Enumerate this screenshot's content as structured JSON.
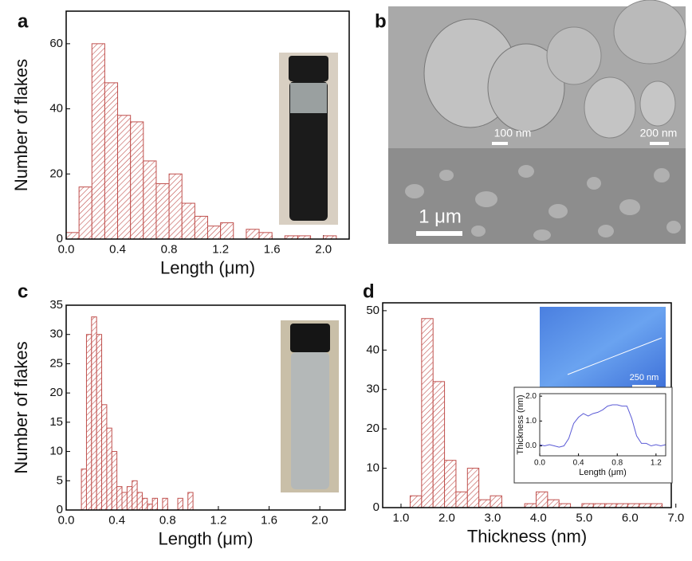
{
  "panel_labels": [
    "a",
    "b",
    "c",
    "d"
  ],
  "scale_bars": [
    "100 nm",
    "200 nm",
    "1 μm",
    "250 nm"
  ],
  "chart_data": [
    {
      "type": "histogram",
      "xlabel": "Length (μm)",
      "ylabel": "Number of flakes",
      "color": "#c0504d",
      "bins": [
        0.0,
        0.1,
        0.2,
        0.3,
        0.4,
        0.5,
        0.6,
        0.7,
        0.8,
        0.9,
        1.0,
        1.1,
        1.2,
        1.3,
        1.4,
        1.5,
        1.6,
        1.7,
        1.8,
        1.9,
        2.0,
        2.1,
        2.2
      ],
      "values": [
        2,
        16,
        60,
        48,
        38,
        36,
        24,
        17,
        20,
        11,
        7,
        4,
        5,
        0,
        3,
        2,
        0,
        1,
        1,
        0,
        1,
        0
      ],
      "xlim": [
        0,
        2.2
      ],
      "ylim": [
        0,
        70
      ],
      "xticks": [
        {
          "value": 0,
          "label": "0.0"
        },
        0.4,
        0.8,
        1.2,
        1.6,
        {
          "value": 2,
          "label": "2.0"
        }
      ],
      "yticks": [
        0,
        20,
        40,
        60
      ]
    },
    {
      "type": "histogram",
      "xlabel": "Length (μm)",
      "ylabel": "Number of flakes",
      "color": "#c0504d",
      "bins": [
        0.12,
        0.16,
        0.2,
        0.24,
        0.28,
        0.32,
        0.36,
        0.4,
        0.44,
        0.48,
        0.52,
        0.56,
        0.6,
        0.64,
        0.68,
        0.72,
        0.76,
        0.8,
        0.84,
        0.88,
        0.92,
        0.96,
        1.0,
        1.04
      ],
      "values": [
        7,
        30,
        33,
        30,
        18,
        14,
        10,
        4,
        3,
        4,
        5,
        3,
        2,
        1,
        2,
        0,
        2,
        0,
        0,
        2,
        0,
        3,
        0
      ],
      "xlim": [
        0,
        2.2
      ],
      "ylim": [
        0,
        35
      ],
      "xticks": [
        {
          "value": 0,
          "label": "0.0"
        },
        0.4,
        0.8,
        1.2,
        1.6,
        {
          "value": 2,
          "label": "2.0"
        }
      ],
      "yticks": [
        0,
        5,
        10,
        15,
        20,
        25,
        30,
        35
      ]
    },
    {
      "type": "histogram",
      "xlabel": "Thickness (nm)",
      "color": "#c0504d",
      "bins": [
        1.2,
        1.45,
        1.7,
        1.95,
        2.2,
        2.45,
        2.7,
        2.95,
        3.2,
        3.45,
        3.7,
        3.95,
        4.2,
        4.45,
        4.7,
        4.95,
        5.2,
        5.45,
        5.7,
        5.95,
        6.2,
        6.45,
        6.7
      ],
      "values": [
        3,
        48,
        32,
        12,
        4,
        10,
        2,
        3,
        0,
        0,
        1,
        4,
        2,
        1,
        0,
        1,
        1,
        1,
        1,
        1,
        1,
        1
      ],
      "xlim": [
        0.6,
        6.9
      ],
      "ylim": [
        0,
        52
      ],
      "xticks": [
        {
          "value": 1,
          "label": "1.0"
        },
        {
          "value": 2,
          "label": "2.0"
        },
        {
          "value": 3,
          "label": "3.0"
        },
        {
          "value": 4,
          "label": "4.0"
        },
        {
          "value": 5,
          "label": "5.0"
        },
        {
          "value": 6,
          "label": "6.0"
        },
        {
          "value": 7,
          "label": "7.0"
        }
      ],
      "yticks": [
        0,
        10,
        20,
        30,
        40,
        50
      ]
    },
    {
      "type": "line",
      "xlabel": "Length (μm)",
      "ylabel": "Thickness (nm)",
      "color": "#5b5bd6",
      "x": [
        0,
        0.05,
        0.1,
        0.15,
        0.2,
        0.25,
        0.3,
        0.35,
        0.4,
        0.45,
        0.5,
        0.55,
        0.6,
        0.65,
        0.7,
        0.75,
        0.8,
        0.85,
        0.9,
        0.95,
        1.0,
        1.05,
        1.1,
        1.15,
        1.2,
        1.25,
        1.3
      ],
      "values": [
        0.05,
        0,
        0.05,
        0,
        -0.05,
        0,
        0.3,
        0.9,
        1.15,
        1.3,
        1.2,
        1.3,
        1.35,
        1.45,
        1.6,
        1.65,
        1.65,
        1.6,
        1.6,
        1.1,
        0.4,
        0.1,
        0.1,
        0,
        0.05,
        0,
        0.05
      ],
      "xlim": [
        0,
        1.3
      ],
      "ylim": [
        -0.4,
        2.1
      ],
      "xticks": [
        {
          "value": 0,
          "label": "0.0"
        },
        0.4,
        0.8,
        1.2
      ],
      "yticks": [
        {
          "value": 0,
          "label": "0.0"
        },
        {
          "value": 1,
          "label": "1.0"
        },
        {
          "value": 2,
          "label": "2.0"
        }
      ]
    }
  ]
}
